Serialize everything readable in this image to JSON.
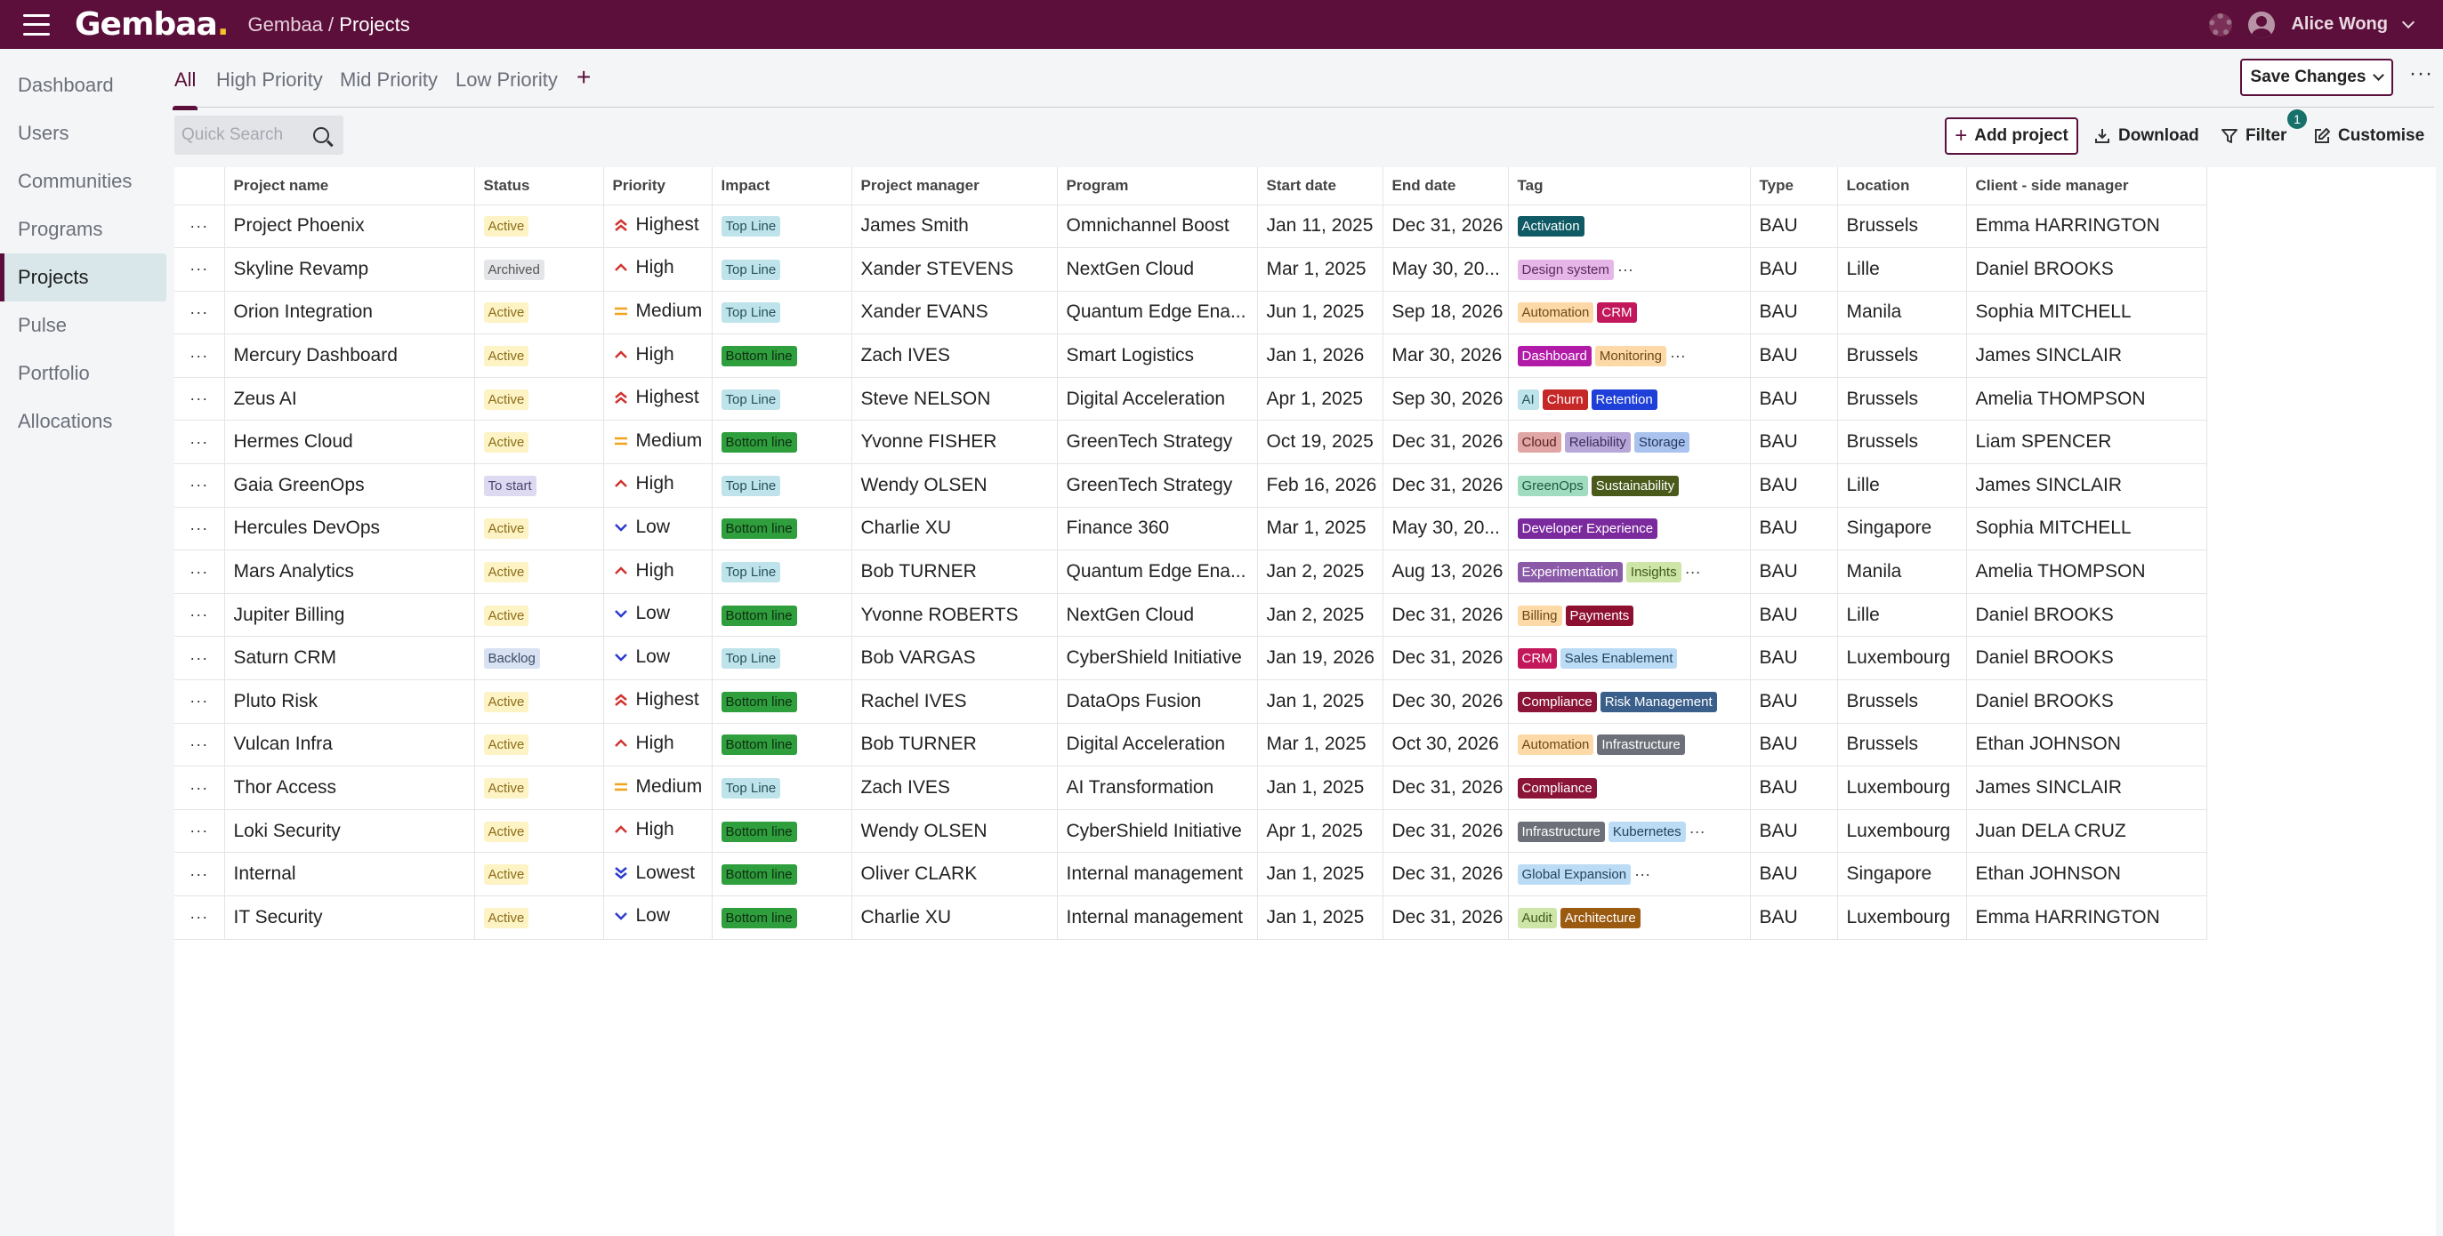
{
  "app": {
    "logo": "Gembaa",
    "breadcrumb_root": "Gembaa",
    "breadcrumb_sep": " / ",
    "breadcrumb_current": "Projects",
    "user": "Alice Wong"
  },
  "sidebar": {
    "items": [
      {
        "label": "Dashboard"
      },
      {
        "label": "Users"
      },
      {
        "label": "Communities"
      },
      {
        "label": "Programs"
      },
      {
        "label": "Projects",
        "active": true
      },
      {
        "label": "Pulse"
      },
      {
        "label": "Portfolio"
      },
      {
        "label": "Allocations"
      }
    ]
  },
  "tabs": [
    {
      "label": "All"
    },
    {
      "label": "High Priority"
    },
    {
      "label": "Mid Priority"
    },
    {
      "label": "Low Priority"
    }
  ],
  "toolbar": {
    "save_label": "Save Changes",
    "more": "···",
    "search_placeholder": "Quick Search",
    "add_label": "Add project",
    "download_label": "Download",
    "filter_label": "Filter",
    "filter_count": "1",
    "customise_label": "Customise"
  },
  "columns": [
    "Project name",
    "Status",
    "Priority",
    "Impact",
    "Project manager",
    "Program",
    "Start date",
    "End date",
    "Tag",
    "Type",
    "Location",
    "Client - side manager"
  ],
  "colors": {
    "brand": "#5b0f3a",
    "accent_yellow": "#f6c12a",
    "badge": "#17706a"
  },
  "rows": [
    {
      "name": "Project Phoenix",
      "status": "Active",
      "priority": "Highest",
      "impact": "Top Line",
      "pm": "James Smith",
      "program": "Omnichannel Boost",
      "start": "Jan 11, 2025",
      "end": "Dec 31, 2026",
      "tags": [
        {
          "t": "Activation",
          "bg": "#0f5a64",
          "fg": "#fff"
        }
      ],
      "more": false,
      "type": "BAU",
      "location": "Brussels",
      "client": "Emma HARRINGTON"
    },
    {
      "name": "Skyline Revamp",
      "status": "Archived",
      "priority": "High",
      "impact": "Top Line",
      "pm": "Xander STEVENS",
      "program": "NextGen Cloud",
      "start": "Mar 1, 2025",
      "end": "May 30, 20...",
      "tags": [
        {
          "t": "Design system",
          "bg": "#e6b6e8",
          "fg": "#5a2a5c"
        }
      ],
      "more": true,
      "type": "BAU",
      "location": "Lille",
      "client": "Daniel BROOKS"
    },
    {
      "name": "Orion Integration",
      "status": "Active",
      "priority": "Medium",
      "impact": "Top Line",
      "pm": "Xander EVANS",
      "program": "Quantum Edge Ena...",
      "start": "Jun 1, 2025",
      "end": "Sep 18, 2026",
      "tags": [
        {
          "t": "Automation",
          "bg": "#fdd9a8",
          "fg": "#6b4a17"
        },
        {
          "t": "CRM",
          "bg": "#c2185b",
          "fg": "#fff"
        }
      ],
      "more": false,
      "type": "BAU",
      "location": "Manila",
      "client": "Sophia MITCHELL"
    },
    {
      "name": "Mercury Dashboard",
      "status": "Active",
      "priority": "High",
      "impact": "Bottom line",
      "pm": "Zach IVES",
      "program": "Smart Logistics",
      "start": "Jan 1, 2026",
      "end": "Mar 30, 2026",
      "tags": [
        {
          "t": "Dashboard",
          "bg": "#b21aa8",
          "fg": "#fff"
        },
        {
          "t": "Monitoring",
          "bg": "#fdd9a8",
          "fg": "#6b4a17"
        }
      ],
      "more": true,
      "type": "BAU",
      "location": "Brussels",
      "client": "James SINCLAIR"
    },
    {
      "name": "Zeus AI",
      "status": "Active",
      "priority": "Highest",
      "impact": "Top Line",
      "pm": "Steve NELSON",
      "program": "Digital Acceleration",
      "start": "Apr 1, 2025",
      "end": "Sep 30, 2026",
      "tags": [
        {
          "t": "AI",
          "bg": "#bfe3ea",
          "fg": "#25525b"
        },
        {
          "t": "Churn",
          "bg": "#c62828",
          "fg": "#fff"
        },
        {
          "t": "Retention",
          "bg": "#1e3fd8",
          "fg": "#fff"
        }
      ],
      "more": false,
      "type": "BAU",
      "location": "Brussels",
      "client": "Amelia THOMPSON"
    },
    {
      "name": "Hermes Cloud",
      "status": "Active",
      "priority": "Medium",
      "impact": "Bottom line",
      "pm": "Yvonne FISHER",
      "program": "GreenTech Strategy",
      "start": "Oct 19, 2025",
      "end": "Dec 31, 2026",
      "tags": [
        {
          "t": "Cloud",
          "bg": "#e0a6a6",
          "fg": "#5c2121"
        },
        {
          "t": "Reliability",
          "bg": "#b7a7d8",
          "fg": "#3b2d5c"
        },
        {
          "t": "Storage",
          "bg": "#a9c2ee",
          "fg": "#23395e"
        }
      ],
      "more": false,
      "type": "BAU",
      "location": "Brussels",
      "client": "Liam SPENCER"
    },
    {
      "name": "Gaia GreenOps",
      "status": "To start",
      "priority": "High",
      "impact": "Top Line",
      "pm": "Wendy OLSEN",
      "program": "GreenTech Strategy",
      "start": "Feb 16, 2026",
      "end": "Dec 31, 2026",
      "tags": [
        {
          "t": "GreenOps",
          "bg": "#9fdcc0",
          "fg": "#1c5a3f"
        },
        {
          "t": "Sustainability",
          "bg": "#4a5a1a",
          "fg": "#fff"
        }
      ],
      "more": false,
      "type": "BAU",
      "location": "Lille",
      "client": "James SINCLAIR"
    },
    {
      "name": "Hercules DevOps",
      "status": "Active",
      "priority": "Low",
      "impact": "Bottom line",
      "pm": "Charlie XU",
      "program": "Finance 360",
      "start": "Mar 1, 2025",
      "end": "May 30, 20...",
      "tags": [
        {
          "t": "Developer Experience",
          "bg": "#7b2a9e",
          "fg": "#fff"
        }
      ],
      "more": false,
      "type": "BAU",
      "location": "Singapore",
      "client": "Sophia MITCHELL"
    },
    {
      "name": "Mars Analytics",
      "status": "Active",
      "priority": "High",
      "impact": "Top Line",
      "pm": "Bob TURNER",
      "program": "Quantum Edge Ena...",
      "start": "Jan 2, 2025",
      "end": "Aug 13, 2026",
      "tags": [
        {
          "t": "Experimentation",
          "bg": "#8a5aa8",
          "fg": "#fff"
        },
        {
          "t": "Insights",
          "bg": "#cde6a8",
          "fg": "#3f5a1a"
        }
      ],
      "more": true,
      "type": "BAU",
      "location": "Manila",
      "client": "Amelia THOMPSON"
    },
    {
      "name": "Jupiter Billing",
      "status": "Active",
      "priority": "Low",
      "impact": "Bottom line",
      "pm": "Yvonne ROBERTS",
      "program": "NextGen Cloud",
      "start": "Jan 2, 2025",
      "end": "Dec 31, 2026",
      "tags": [
        {
          "t": "Billing",
          "bg": "#fdd9a8",
          "fg": "#6b4a17"
        },
        {
          "t": "Payments",
          "bg": "#8e1030",
          "fg": "#fff"
        }
      ],
      "more": false,
      "type": "BAU",
      "location": "Lille",
      "client": "Daniel BROOKS"
    },
    {
      "name": "Saturn CRM",
      "status": "Backlog",
      "priority": "Low",
      "impact": "Top Line",
      "pm": "Bob VARGAS",
      "program": "CyberShield Initiative",
      "start": "Jan 19, 2026",
      "end": "Dec 31, 2026",
      "tags": [
        {
          "t": "CRM",
          "bg": "#c2185b",
          "fg": "#fff"
        },
        {
          "t": "Sales Enablement",
          "bg": "#bcdcf5",
          "fg": "#24435e"
        }
      ],
      "more": false,
      "type": "BAU",
      "location": "Luxembourg",
      "client": "Daniel BROOKS"
    },
    {
      "name": "Pluto Risk",
      "status": "Active",
      "priority": "Highest",
      "impact": "Bottom line",
      "pm": "Rachel IVES",
      "program": "DataOps Fusion",
      "start": "Jan 1, 2025",
      "end": "Dec 30, 2026",
      "tags": [
        {
          "t": "Compliance",
          "bg": "#8a1538",
          "fg": "#fff"
        },
        {
          "t": "Risk Management",
          "bg": "#3a5f8a",
          "fg": "#fff"
        }
      ],
      "more": false,
      "type": "BAU",
      "location": "Brussels",
      "client": "Daniel BROOKS"
    },
    {
      "name": "Vulcan Infra",
      "status": "Active",
      "priority": "High",
      "impact": "Bottom line",
      "pm": "Bob TURNER",
      "program": "Digital Acceleration",
      "start": "Mar 1, 2025",
      "end": "Oct 30, 2026",
      "tags": [
        {
          "t": "Automation",
          "bg": "#fdd9a8",
          "fg": "#6b4a17"
        },
        {
          "t": "Infrastructure",
          "bg": "#6e7079",
          "fg": "#fff"
        }
      ],
      "more": false,
      "type": "BAU",
      "location": "Brussels",
      "client": "Ethan JOHNSON"
    },
    {
      "name": "Thor Access",
      "status": "Active",
      "priority": "Medium",
      "impact": "Top Line",
      "pm": "Zach IVES",
      "program": "AI Transformation",
      "start": "Jan 1, 2025",
      "end": "Dec 31, 2026",
      "tags": [
        {
          "t": "Compliance",
          "bg": "#8a1538",
          "fg": "#fff"
        }
      ],
      "more": false,
      "type": "BAU",
      "location": "Luxembourg",
      "client": "James SINCLAIR"
    },
    {
      "name": "Loki Security",
      "status": "Active",
      "priority": "High",
      "impact": "Bottom line",
      "pm": "Wendy OLSEN",
      "program": "CyberShield Initiative",
      "start": "Apr 1, 2025",
      "end": "Dec 31, 2026",
      "tags": [
        {
          "t": "Infrastructure",
          "bg": "#6e7079",
          "fg": "#fff"
        },
        {
          "t": "Kubernetes",
          "bg": "#bcdcf5",
          "fg": "#24435e"
        }
      ],
      "more": true,
      "type": "BAU",
      "location": "Luxembourg",
      "client": "Juan DELA CRUZ"
    },
    {
      "name": "Internal",
      "status": "Active",
      "priority": "Lowest",
      "impact": "Bottom line",
      "pm": "Oliver CLARK",
      "program": "Internal management",
      "start": "Jan 1, 2025",
      "end": "Dec 31, 2026",
      "tags": [
        {
          "t": "Global Expansion",
          "bg": "#bcdcf5",
          "fg": "#24435e"
        }
      ],
      "more": true,
      "type": "BAU",
      "location": "Singapore",
      "client": "Ethan JOHNSON"
    },
    {
      "name": "IT Security",
      "status": "Active",
      "priority": "Low",
      "impact": "Bottom line",
      "pm": "Charlie XU",
      "program": "Internal management",
      "start": "Jan 1, 2025",
      "end": "Dec 31, 2026",
      "tags": [
        {
          "t": "Audit",
          "bg": "#cde6a8",
          "fg": "#3f5a1a"
        },
        {
          "t": "Architecture",
          "bg": "#9a5a10",
          "fg": "#fff"
        }
      ],
      "more": false,
      "type": "BAU",
      "location": "Luxembourg",
      "client": "Emma HARRINGTON"
    }
  ]
}
